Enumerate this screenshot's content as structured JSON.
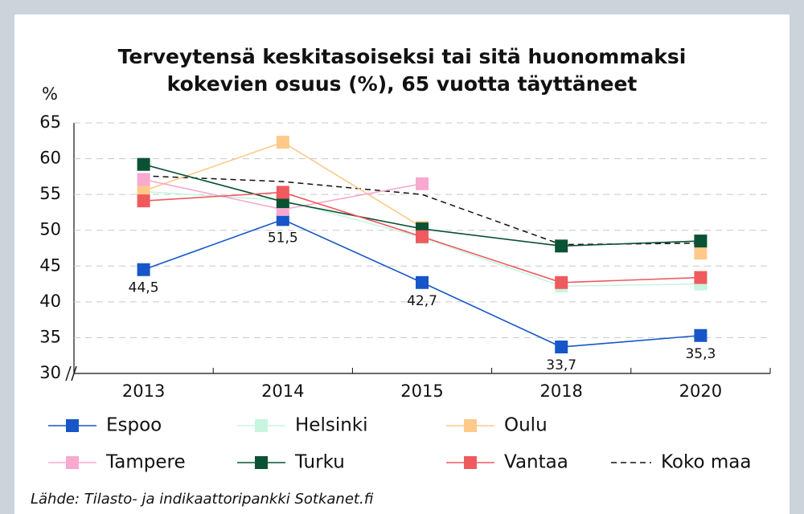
{
  "chart_data": {
    "type": "line",
    "title": [
      "Terveytensä keskitasoiseksi tai sitä huonommaksi",
      "kokevien osuus (%), 65 vuotta täyttäneet"
    ],
    "y_label": "%",
    "source": "Lähde: Tilasto- ja indikaattoripankki Sotkanet.fi",
    "categories": [
      "2013",
      "2014",
      "2015",
      "2018",
      "2020"
    ],
    "ylim": [
      30,
      65
    ],
    "yticks": [
      30,
      35,
      40,
      45,
      50,
      55,
      60,
      65
    ],
    "grid": true,
    "series": [
      {
        "name": "Espoo",
        "color": "#1656c9",
        "values": [
          44.5,
          51.5,
          42.7,
          33.7,
          35.3
        ],
        "value_labels": [
          "44,5",
          "51,5",
          "42,7",
          "33,7",
          "35,3"
        ]
      },
      {
        "name": "Helsinki",
        "color": "#c7f5e0",
        "values": [
          55.4,
          54.2,
          49.0,
          42.2,
          42.5
        ]
      },
      {
        "name": "Oulu",
        "color": "#ffc98a",
        "values": [
          55.5,
          62.3,
          50.4,
          null,
          46.8
        ]
      },
      {
        "name": "Tampere",
        "color": "#f7a9cf",
        "values": [
          57.1,
          52.9,
          56.5,
          null,
          null
        ]
      },
      {
        "name": "Turku",
        "color": "#0a5234",
        "values": [
          59.2,
          54.0,
          50.2,
          47.8,
          48.5
        ]
      },
      {
        "name": "Vantaa",
        "color": "#ef5a5f",
        "values": [
          54.1,
          55.3,
          49.1,
          42.7,
          43.4
        ]
      },
      {
        "name": "Koko maa",
        "color": "#111111",
        "dashed": true,
        "markers": false,
        "values": [
          57.6,
          56.8,
          55.0,
          48.0,
          48.2
        ]
      }
    ]
  }
}
